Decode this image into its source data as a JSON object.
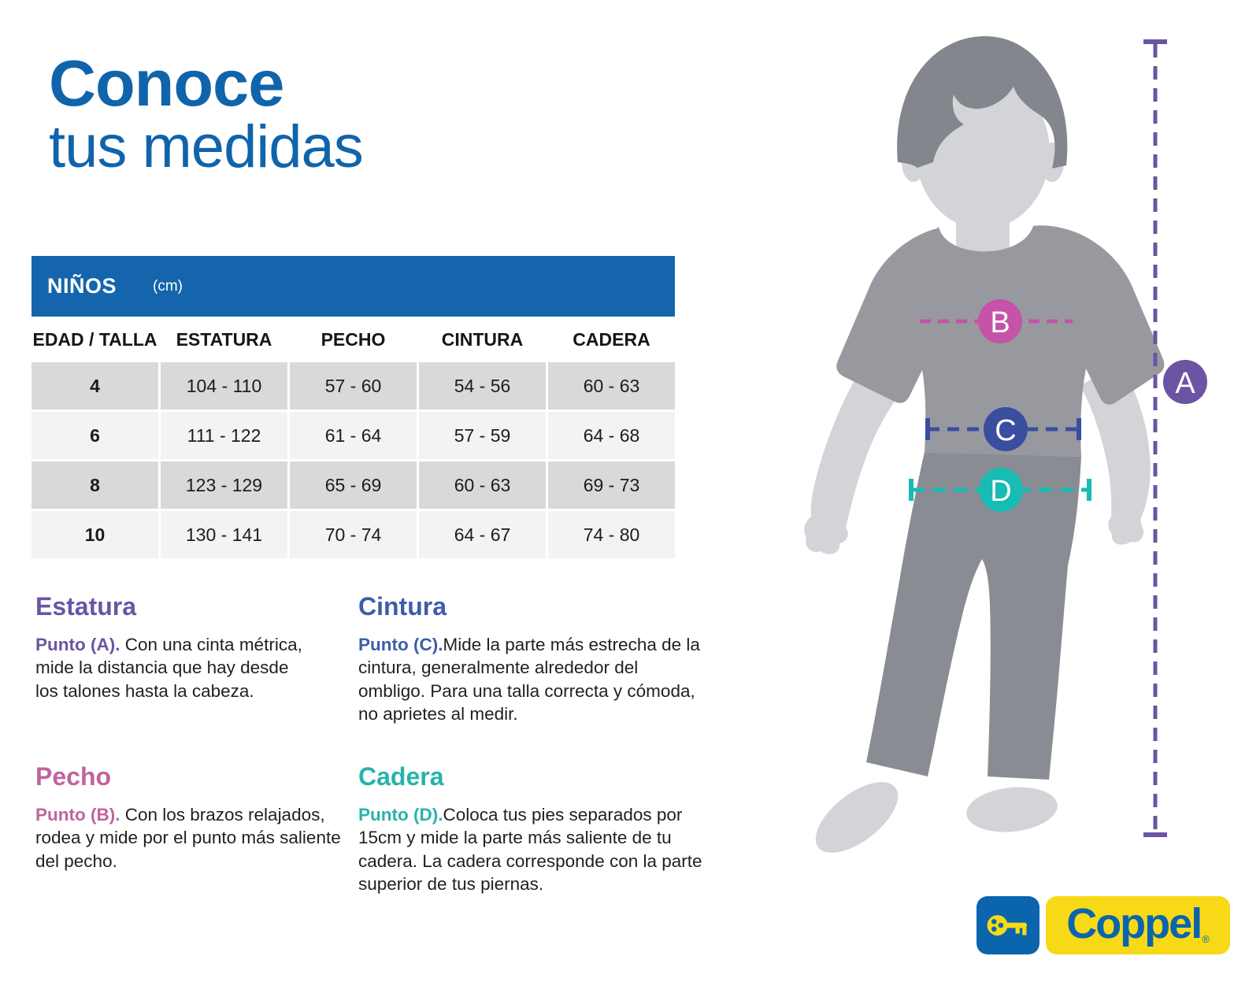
{
  "title": {
    "line1": "Conoce",
    "line2": "tus medidas"
  },
  "table": {
    "banner": {
      "label": "NIÑOS",
      "unit": "(cm)"
    },
    "columns": [
      "EDAD / TALLA",
      "ESTATURA",
      "PECHO",
      "CINTURA",
      "CADERA"
    ],
    "rows": [
      [
        "4",
        "104 - 110",
        "57 - 60",
        "54 - 56",
        "60 - 63"
      ],
      [
        "6",
        "111 - 122",
        "61 - 64",
        "57 - 59",
        "64 - 68"
      ],
      [
        "8",
        "123 - 129",
        "65 - 69",
        "60 - 63",
        "69 - 73"
      ],
      [
        "10",
        "130 - 141",
        "70 - 74",
        "64 - 67",
        "74 - 80"
      ]
    ]
  },
  "sections": [
    {
      "heading": "Estatura",
      "color": "#6a55a4",
      "punto_label": "Punto (A).",
      "text": " Con una cinta métrica, mide la distancia que hay desde los talones hasta la cabeza."
    },
    {
      "heading": "Cintura",
      "color": "#3e5caa",
      "punto_label": "Punto (C).",
      "text": "Mide la parte más estrecha de la cintura, generalmente alrededor del ombligo. Para una talla correcta y cómoda, no aprietes al medir."
    },
    {
      "heading": "Pecho",
      "color": "#c0639f",
      "punto_label": "Punto (B).",
      "text": " Con los brazos relajados, rodea y mide por el punto más saliente del pecho."
    },
    {
      "heading": "Cadera",
      "color": "#29b2ab",
      "punto_label": "Punto (D).",
      "text": "Coloca tus pies separados por 15cm y mide la parte más saliente de tu cadera. La cadera corresponde con la parte superior de tus piernas."
    }
  ],
  "figure": {
    "markers": [
      {
        "label": "A",
        "color": "#6a54a3"
      },
      {
        "label": "B",
        "color": "#c553a8"
      },
      {
        "label": "C",
        "color": "#3a4e9f"
      },
      {
        "label": "D",
        "color": "#17bcb4"
      }
    ]
  },
  "logo": {
    "brand": "Coppel",
    "reg": "®"
  },
  "colors": {
    "title_blue": "#1064ab",
    "banner_blue": "#1465ac",
    "row_dark": "#d9d9d9",
    "row_light": "#f3f3f4",
    "logo_blue": "#0a65ad",
    "logo_yellow": "#f7d917",
    "body_gray_dark": "#84868d",
    "body_gray_mid": "#97999f",
    "body_gray_pants": "#8a8c93",
    "body_gray_skin": "#d2d4d8"
  }
}
